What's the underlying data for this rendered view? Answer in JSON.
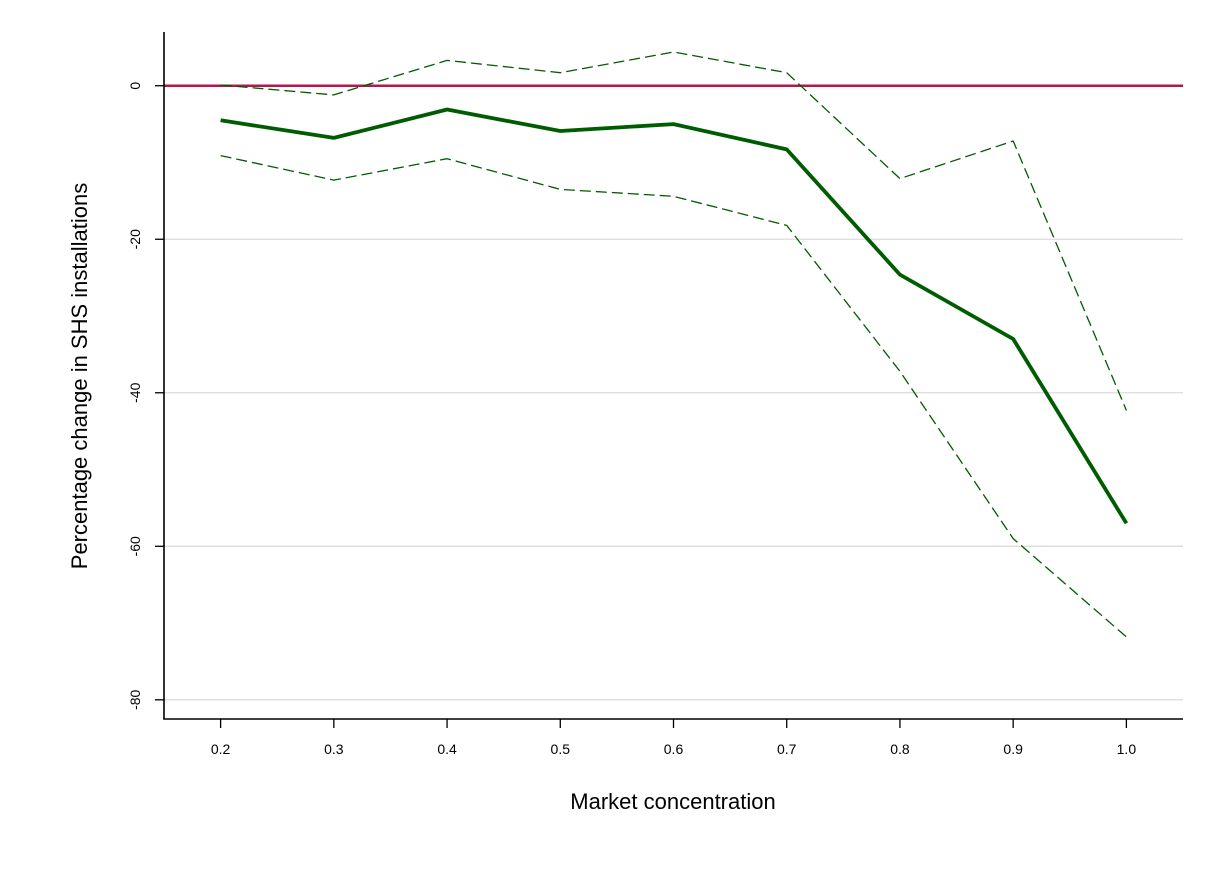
{
  "chart_data": {
    "type": "line",
    "title": "",
    "xlabel": "Market concentration",
    "ylabel": "Percentage change in SHS installations",
    "x": [
      0.2,
      0.3,
      0.4,
      0.5,
      0.6,
      0.7,
      0.8,
      0.9,
      1.0
    ],
    "x_tick_labels": [
      "0.2",
      "0.3",
      "0.4",
      "0.5",
      "0.6",
      "0.7",
      "0.8",
      "0.9",
      "1.0"
    ],
    "y_ticks": [
      0,
      -20,
      -40,
      -60,
      -80
    ],
    "y_tick_labels": [
      "0",
      "-20",
      "-40",
      "-60",
      "-80"
    ],
    "xlim": [
      0.15,
      1.05
    ],
    "ylim": [
      -82.5,
      7
    ],
    "grid": "horizontal",
    "legend": "none",
    "reference_line": {
      "y": 0,
      "color": "#b0184f"
    },
    "series": [
      {
        "role": "estimate",
        "style": "solid",
        "color": "#005c00",
        "values": [
          -4.5,
          -6.8,
          -3.1,
          -5.9,
          -5.0,
          -8.3,
          -24.6,
          -33.0,
          -57.0
        ]
      },
      {
        "role": "upper-ci",
        "style": "dashed",
        "color": "#005c00",
        "values": [
          0.1,
          -1.2,
          3.3,
          1.7,
          4.4,
          1.7,
          -12.1,
          -7.2,
          -42.3
        ]
      },
      {
        "role": "lower-ci",
        "style": "dashed",
        "color": "#005c00",
        "values": [
          -9.1,
          -12.3,
          -9.5,
          -13.5,
          -14.4,
          -18.2,
          -37.2,
          -59.0,
          -71.8
        ]
      }
    ]
  }
}
